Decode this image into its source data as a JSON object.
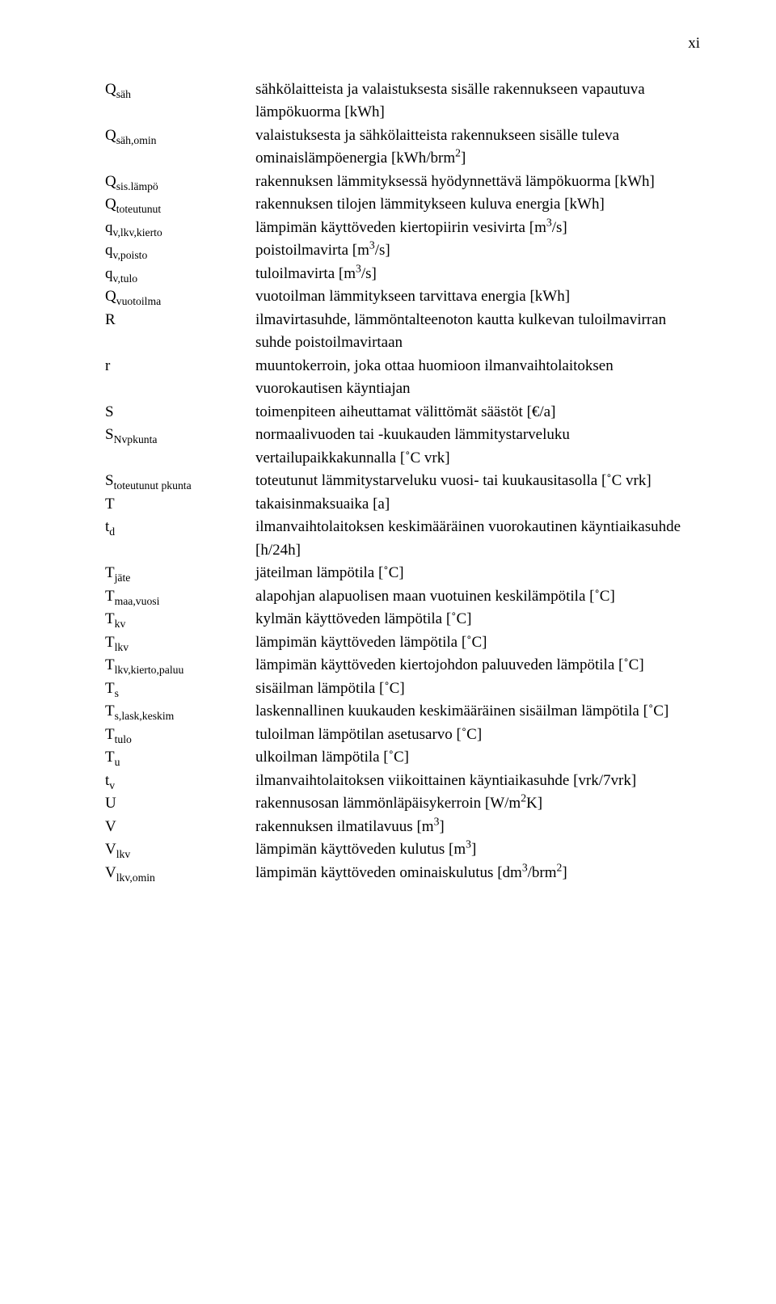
{
  "page": {
    "number_label": "xi"
  },
  "font": {
    "family": "Times New Roman",
    "size_pt": 14,
    "color": "#000000"
  },
  "background_color": "#ffffff",
  "rows": [
    {
      "sym_html": "Q<sub>säh</sub>",
      "desc_html": "sähkölaitteista ja valaistuksesta sisälle rakennukseen vapautuva lämpökuorma [kWh]"
    },
    {
      "sym_html": "Q<sub>säh,omin</sub>",
      "desc_html": "valaistuksesta ja sähkölaitteista rakennukseen sisälle tuleva ominaislämpöenergia [kWh/brm<sup>2</sup>]"
    },
    {
      "sym_html": "Q<sub>sis.lämpö</sub>",
      "desc_html": "rakennuksen lämmityksessä hyödynnettävä lämpökuorma [kWh]"
    },
    {
      "sym_html": "Q<sub>toteutunut</sub>",
      "desc_html": "rakennuksen tilojen lämmitykseen kuluva energia [kWh]"
    },
    {
      "sym_html": "q<sub>v,lkv,kierto</sub>",
      "desc_html": "lämpimän käyttöveden kiertopiirin vesivirta [m<sup>3</sup>/s]"
    },
    {
      "sym_html": "q<sub>v,poisto</sub>",
      "desc_html": "poistoilmavirta [m<sup>3</sup>/s]"
    },
    {
      "sym_html": "q<sub>v,tulo</sub>",
      "desc_html": "tuloilmavirta [m<sup>3</sup>/s]"
    },
    {
      "sym_html": "Q<sub>vuotoilma</sub>",
      "desc_html": "vuotoilman lämmitykseen tarvittava energia [kWh]"
    },
    {
      "sym_html": "R",
      "desc_html": "ilmavirtasuhde, lämmöntalteenoton kautta kulkevan tuloilmavirran suhde poistoilmavirtaan"
    },
    {
      "sym_html": "r",
      "desc_html": "muuntokerroin, joka ottaa huomioon ilmanvaihtolaitoksen vuorokautisen käyntiajan"
    },
    {
      "sym_html": "S",
      "desc_html": "toimenpiteen aiheuttamat välittömät säästöt [€/a]"
    },
    {
      "sym_html": "S<sub>Nvpkunta</sub>",
      "desc_html": "normaalivuoden tai -kuukauden lämmitystarveluku vertailupaikkakunnalla [&#730;C vrk]"
    },
    {
      "sym_html": "S<sub>toteutunut pkunta</sub>",
      "desc_html": "toteutunut lämmitystarveluku vuosi- tai kuukausitasolla [&#730;C vrk]"
    },
    {
      "sym_html": "T",
      "desc_html": "takaisinmaksuaika [a]"
    },
    {
      "sym_html": "t<sub>d</sub>",
      "desc_html": "ilmanvaihtolaitoksen keskimääräinen vuorokautinen käyntiaikasuhde [h/24h]"
    },
    {
      "sym_html": "T<sub>jäte</sub>",
      "desc_html": "jäteilman lämpötila [&#730;C]"
    },
    {
      "sym_html": "T<sub>maa,vuosi</sub>",
      "desc_html": "alapohjan alapuolisen maan vuotuinen keskilämpötila [&#730;C]"
    },
    {
      "sym_html": "T<sub>kv</sub>",
      "desc_html": "kylmän käyttöveden lämpötila [&#730;C]"
    },
    {
      "sym_html": "T<sub>lkv</sub>",
      "desc_html": "lämpimän käyttöveden lämpötila [&#730;C]"
    },
    {
      "sym_html": "T<sub>lkv,kierto,paluu</sub>",
      "desc_html": "lämpimän käyttöveden kiertojohdon paluuveden lämpötila [&#730;C]"
    },
    {
      "sym_html": "T<sub>s</sub>",
      "desc_html": "sisäilman lämpötila [&#730;C]"
    },
    {
      "sym_html": "T<sub>s,lask,keskim</sub>",
      "desc_html": "laskennallinen kuukauden keskimääräinen sisäilman lämpötila [&#730;C]"
    },
    {
      "sym_html": "T<sub>tulo</sub>",
      "desc_html": "tuloilman lämpötilan asetusarvo [&#730;C]"
    },
    {
      "sym_html": "T<sub>u</sub>",
      "desc_html": "ulkoilman lämpötila [&#730;C]"
    },
    {
      "sym_html": "t<sub>v</sub>",
      "desc_html": "ilmanvaihtolaitoksen viikoittainen käyntiaikasuhde [vrk/7vrk]"
    },
    {
      "sym_html": "U",
      "desc_html": "rakennusosan lämmönläpäisykerroin [W/m<sup>2</sup>K]"
    },
    {
      "sym_html": "V",
      "desc_html": "rakennuksen ilmatilavuus [m<sup>3</sup>]"
    },
    {
      "sym_html": "V<sub>lkv</sub>",
      "desc_html": "lämpimän käyttöveden kulutus [m<sup>3</sup>]"
    },
    {
      "sym_html": "V<sub>lkv,omin</sub>",
      "desc_html": "lämpimän käyttöveden ominaiskulutus [dm<sup>3</sup>/brm<sup>2</sup>]"
    }
  ]
}
